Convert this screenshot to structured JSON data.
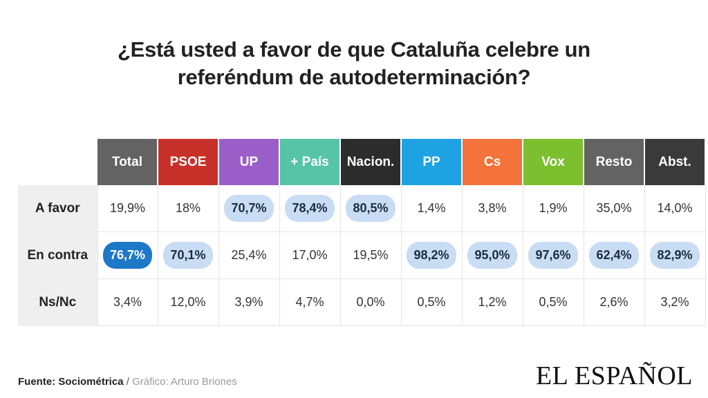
{
  "header": {
    "title_line1": "¿Está usted a favor de que Cataluña celebre un",
    "title_line2": "referéndum de autodeterminación?"
  },
  "footer": {
    "source": "Fuente: Sociométrica",
    "separator": " / ",
    "credit": "Gráfico: Arturo Briones"
  },
  "logo": "EL ESPAÑOL",
  "chart_data": {
    "type": "table",
    "title": "¿Está usted a favor de que Cataluña celebre un referéndum de autodeterminación?",
    "columns": [
      {
        "label": "Total",
        "color": "#636363"
      },
      {
        "label": "PSOE",
        "color": "#c8312a"
      },
      {
        "label": "UP",
        "color": "#9b5ec9"
      },
      {
        "label": "+ País",
        "color": "#57c3a7"
      },
      {
        "label": "Nacion.",
        "color": "#2c2c2c"
      },
      {
        "label": "PP",
        "color": "#1ea2e2"
      },
      {
        "label": "Cs",
        "color": "#f3733a"
      },
      {
        "label": "Vox",
        "color": "#7cc02f"
      },
      {
        "label": "Resto",
        "color": "#636363"
      },
      {
        "label": "Abst.",
        "color": "#3a3a3a"
      }
    ],
    "rows": [
      {
        "label": "A favor",
        "values": [
          "19,9%",
          "18%",
          "70,7%",
          "78,4%",
          "80,5%",
          "1,4%",
          "3,8%",
          "1,9%",
          "35,0%",
          "14,0%"
        ],
        "highlight": [
          "none",
          "none",
          "light",
          "light",
          "light",
          "none",
          "none",
          "none",
          "none",
          "none"
        ]
      },
      {
        "label": "En contra",
        "values": [
          "76,7%",
          "70,1%",
          "25,4%",
          "17,0%",
          "19,5%",
          "98,2%",
          "95,0%",
          "97,6%",
          "62,4%",
          "82,9%"
        ],
        "highlight": [
          "dark",
          "light",
          "none",
          "none",
          "none",
          "light",
          "light",
          "light",
          "light",
          "light"
        ]
      },
      {
        "label": "Ns/Nc",
        "values": [
          "3,4%",
          "12,0%",
          "3,9%",
          "4,7%",
          "0,0%",
          "0,5%",
          "1,2%",
          "0,5%",
          "2,6%",
          "3,2%"
        ],
        "highlight": [
          "none",
          "none",
          "none",
          "none",
          "none",
          "none",
          "none",
          "none",
          "none",
          "none"
        ]
      }
    ],
    "highlight_colors": {
      "light": "#c8ddf4",
      "dark": "#1d78c8"
    }
  }
}
